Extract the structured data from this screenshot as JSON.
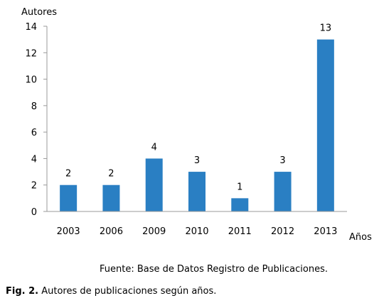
{
  "chart_data": {
    "type": "bar",
    "categories": [
      "2003",
      "2006",
      "2009",
      "2010",
      "2011",
      "2012",
      "2013"
    ],
    "values": [
      2,
      2,
      4,
      3,
      1,
      3,
      13
    ],
    "data_labels": [
      "2",
      "2",
      "4",
      "3",
      "1",
      "3",
      "13"
    ],
    "yticks": [
      "0",
      "2",
      "4",
      "6",
      "8",
      "10",
      "12",
      "14"
    ],
    "ylim": [
      0,
      14
    ],
    "ylabel": "Autores",
    "xlabel": "Años",
    "bar_color": "#2a7fc3",
    "grid": false,
    "legend": "none"
  },
  "source_note": "Fuente: Base de Datos Registro de Publicaciones.",
  "caption": {
    "label": "Fig. 2.",
    "text": " Autores de publicaciones según años."
  }
}
